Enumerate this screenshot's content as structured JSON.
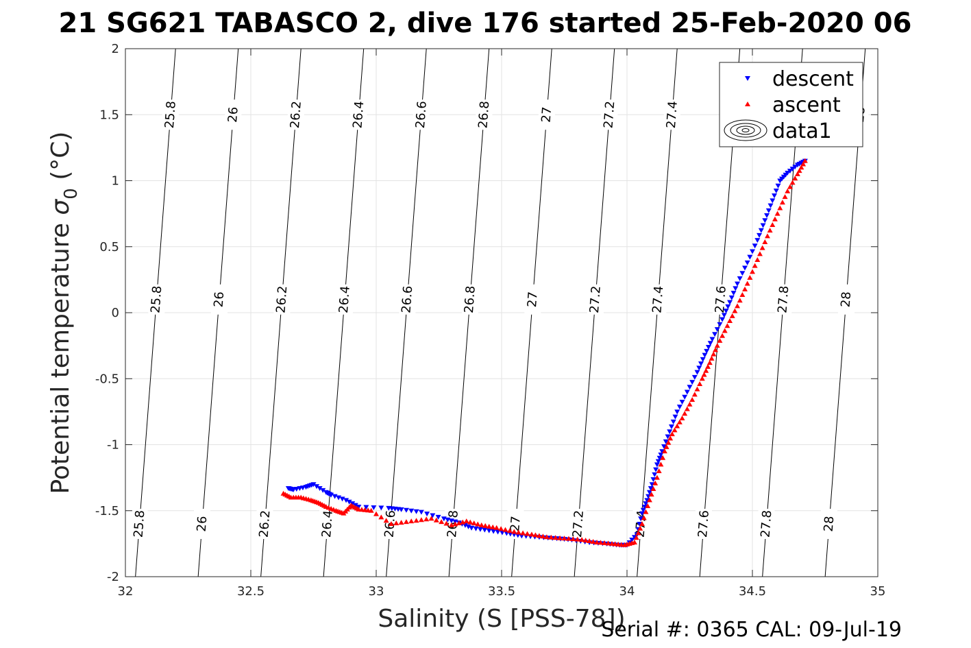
{
  "figure": {
    "title": "21 SG621 TABASCO 2, dive 176 started 25-Feb-2020 06",
    "footer": "Serial #: 0365  CAL: 09-Jul-19"
  },
  "chart_data": {
    "type": "scatter",
    "title": "21 SG621 TABASCO 2, dive 176 started 25-Feb-2020 06",
    "xlabel": "Salinity (S [PSS-78])",
    "ylabel_main": "Potential temperature ",
    "ylabel_sigma": "σ",
    "ylabel_sub": "0",
    "ylabel_unit": " (°C)",
    "xlim": [
      32,
      35
    ],
    "ylim": [
      -2,
      2
    ],
    "xticks": [
      32,
      32.5,
      33,
      33.5,
      34,
      34.5,
      35
    ],
    "xtick_labels": [
      "32",
      "32.5",
      "33",
      "33.5",
      "34",
      "34.5",
      "35"
    ],
    "yticks": [
      -2,
      -1.5,
      -1,
      -0.5,
      0,
      0.5,
      1,
      1.5,
      2
    ],
    "ytick_labels": [
      "-2",
      "-1.5",
      "-1",
      "-0.5",
      "0",
      "0.5",
      "1",
      "1.5",
      "2"
    ],
    "grid": true,
    "legend_position": "top-right",
    "density_contours": {
      "levels": [
        25.8,
        26,
        26.2,
        26.4,
        26.6,
        26.8,
        27,
        27.2,
        27.4,
        27.6,
        27.8,
        28
      ],
      "labels": [
        "25.8",
        "26",
        "26.2",
        "26.4",
        "26.6",
        "26.8",
        "27",
        "27.2",
        "27.4",
        "27.6",
        "27.8",
        "28"
      ],
      "label_y": [
        1.5,
        0.1,
        -1.6
      ]
    },
    "series": [
      {
        "name": "descent",
        "marker": "triangle-down",
        "color": "#0000ff",
        "x": [
          32.65,
          32.67,
          32.72,
          32.75,
          32.8,
          32.82,
          32.88,
          32.93,
          33.05,
          33.1,
          33.18,
          33.27,
          33.33,
          33.38,
          33.45,
          33.52,
          33.58,
          33.65,
          33.72,
          33.78,
          33.85,
          33.92,
          33.97,
          34.0,
          34.04,
          34.06,
          34.08,
          34.1,
          34.12,
          34.14,
          34.17,
          34.2,
          34.24,
          34.28,
          34.31,
          34.34,
          34.38,
          34.41,
          34.44,
          34.48,
          34.52,
          34.55,
          34.58,
          34.61,
          34.64,
          34.68,
          34.71
        ],
        "y": [
          -1.33,
          -1.34,
          -1.32,
          -1.3,
          -1.36,
          -1.38,
          -1.42,
          -1.47,
          -1.48,
          -1.49,
          -1.51,
          -1.56,
          -1.59,
          -1.63,
          -1.65,
          -1.67,
          -1.69,
          -1.7,
          -1.71,
          -1.72,
          -1.74,
          -1.75,
          -1.76,
          -1.76,
          -1.68,
          -1.52,
          -1.42,
          -1.3,
          -1.15,
          -1.05,
          -0.9,
          -0.75,
          -0.6,
          -0.45,
          -0.32,
          -0.2,
          -0.05,
          0.08,
          0.22,
          0.38,
          0.55,
          0.7,
          0.85,
          1.0,
          1.06,
          1.12,
          1.15
        ]
      },
      {
        "name": "ascent",
        "marker": "triangle-up",
        "color": "#ff0000",
        "x": [
          32.63,
          32.66,
          32.7,
          32.74,
          32.77,
          32.8,
          32.84,
          32.87,
          32.9,
          32.93,
          32.98,
          33.06,
          33.14,
          33.22,
          33.3,
          33.36,
          33.42,
          33.48,
          33.55,
          33.62,
          33.68,
          33.75,
          33.82,
          33.88,
          33.94,
          33.99,
          34.03,
          34.06,
          34.09,
          34.12,
          34.15,
          34.18,
          34.22,
          34.26,
          34.3,
          34.33,
          34.36,
          34.4,
          34.44,
          34.48,
          34.52,
          34.56,
          34.6,
          34.64,
          34.68,
          34.71
        ],
        "y": [
          -1.37,
          -1.4,
          -1.4,
          -1.42,
          -1.44,
          -1.47,
          -1.5,
          -1.52,
          -1.46,
          -1.49,
          -1.5,
          -1.6,
          -1.58,
          -1.56,
          -1.61,
          -1.58,
          -1.61,
          -1.63,
          -1.66,
          -1.68,
          -1.7,
          -1.71,
          -1.72,
          -1.74,
          -1.75,
          -1.76,
          -1.74,
          -1.6,
          -1.42,
          -1.25,
          -1.05,
          -0.92,
          -0.8,
          -0.66,
          -0.5,
          -0.38,
          -0.25,
          -0.1,
          0.05,
          0.22,
          0.4,
          0.58,
          0.75,
          0.92,
          1.05,
          1.15
        ]
      }
    ],
    "legend": [
      {
        "label": "descent",
        "marker": "triangle-down",
        "color": "#0000ff"
      },
      {
        "label": "ascent",
        "marker": "triangle-up",
        "color": "#ff0000"
      },
      {
        "label": "data1",
        "marker": "contour",
        "color": "#000000"
      }
    ]
  }
}
